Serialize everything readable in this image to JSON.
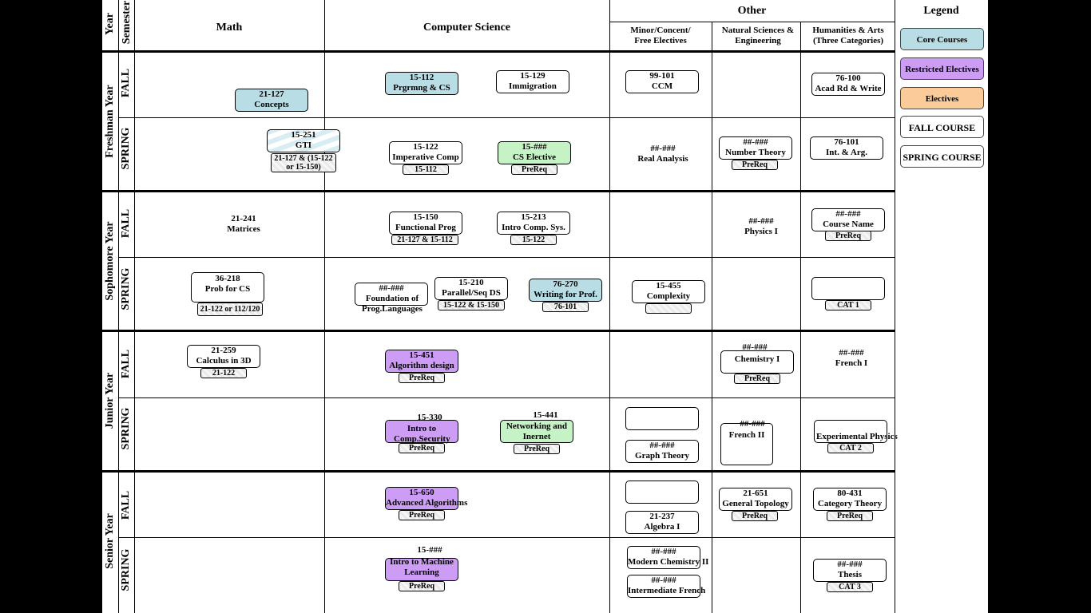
{
  "headers": {
    "year": "Year",
    "semester": "Semester",
    "math": "Math",
    "cs": "Computer Science",
    "other": "Other",
    "minor": "Minor/Concent/ Free Electives",
    "natsci": "Natural Sciences & Engineering",
    "hum": "Humanities & Arts (Three Categories)"
  },
  "years": [
    "Freshman Year",
    "Sophomore Year",
    "Junior Year",
    "Senior Year"
  ],
  "semesters": {
    "fall": "FALL",
    "spring": "SPRING"
  },
  "legend": {
    "title": "Legend",
    "core": "Core Courses",
    "restricted": "Restricted Electives",
    "electives": "Electives",
    "fall": "FALL COURSE",
    "spring": "SPRING COURSE",
    "colors": {
      "core": "#b9dde5",
      "restricted": "#cd9cf5",
      "electives": "#fbcc9a",
      "cs_elective": "#c6f3c6"
    }
  },
  "courses": {
    "c21127": {
      "code": "21-127",
      "name": "Concepts"
    },
    "c15112": {
      "code": "15-112",
      "name": "Prgrmng & CS"
    },
    "c15129": {
      "code": "15-129",
      "name": "Immigration"
    },
    "c99101": {
      "code": "99-101",
      "name": "CCM"
    },
    "c76100": {
      "code": "76-100",
      "name": "Acad Rd & Write"
    },
    "c15251": {
      "code": "15-251",
      "name": "GTI",
      "prereq": "21-127 & (15-122 or 15-150)"
    },
    "c15122": {
      "code": "15-122",
      "name": "Imperative Comp",
      "prereq": "15-112"
    },
    "csel": {
      "code": "15-###",
      "name": "CS Elective",
      "prereq": "PreReq"
    },
    "realan": {
      "code": "##-###",
      "name": "Real Analysis"
    },
    "numth": {
      "code": "##-###",
      "name": "Number Theory",
      "prereq": "PreReq"
    },
    "c76101": {
      "code": "76-101",
      "name": "Int. & Arg."
    },
    "c21241": {
      "code": "21-241",
      "name": "Matrices"
    },
    "c15150": {
      "code": "15-150",
      "name": "Functional Prog",
      "prereq": "21-127 & 15-112"
    },
    "c15213": {
      "code": "15-213",
      "name": "Intro Comp. Sys.",
      "prereq": "15-122"
    },
    "phys1": {
      "code": "##-###",
      "name": "Physics I"
    },
    "cname": {
      "code": "##-###",
      "name": "Course Name",
      "prereq": "PreReq"
    },
    "c36218": {
      "code": "36-218",
      "name": "Prob for CS",
      "prereq": "21-122 or 112/120"
    },
    "foundpl": {
      "code": "##-###",
      "name": "Foundation of Prog.Languages"
    },
    "c15210": {
      "code": "15-210",
      "name": "Parallel/Seq DS",
      "prereq": "15-122 & 15-150"
    },
    "c76270": {
      "code": "76-270",
      "name": "Writing for Prof.",
      "prereq": "76-101"
    },
    "c15455": {
      "code": "15-455",
      "name": "Complexity Theory"
    },
    "cat1": {
      "prereq": "CAT 1"
    },
    "c21259": {
      "code": "21-259",
      "name": "Calculus in 3D",
      "prereq": "21-122"
    },
    "c15451": {
      "code": "15-451",
      "name": "Algorithm design",
      "prereq": "PreReq"
    },
    "chem1": {
      "code": "##-###",
      "name": "Chemistry I",
      "prereq": "PreReq"
    },
    "french1": {
      "code": "##-###",
      "name": "French I"
    },
    "c15330": {
      "code": "15-330",
      "name": "Intro to Comp.Security",
      "prereq": "PreReq"
    },
    "c15441": {
      "code": "15-441",
      "name": "Networking and Inernet",
      "prereq": "PreReq"
    },
    "graphth": {
      "code": "##-###",
      "name": "Graph Theory"
    },
    "french2": {
      "code": "##-###",
      "name": "French II"
    },
    "expphys": {
      "name": "Experimental Physics",
      "prereq": "CAT 2"
    },
    "c15650": {
      "code": "15-650",
      "name": "Advanced Algorithms",
      "prereq": "PreReq"
    },
    "c21237": {
      "code": "21-237",
      "name": "Algebra I"
    },
    "c21651": {
      "code": "21-651",
      "name": "General Topology",
      "prereq": "PreReq"
    },
    "c80431": {
      "code": "80-431",
      "name": "Category Theory",
      "prereq": "PreReq"
    },
    "ml": {
      "code": "15-###",
      "name": "Intro to Machine Learning",
      "prereq": "PreReq"
    },
    "modchem": {
      "code": "##-###",
      "name": "Modern Chemistry II"
    },
    "intfrench": {
      "code": "##-###",
      "name": "Intermediate French"
    },
    "thesis": {
      "code": "##-###",
      "name": "Thesis",
      "prereq": "CAT 3"
    }
  }
}
